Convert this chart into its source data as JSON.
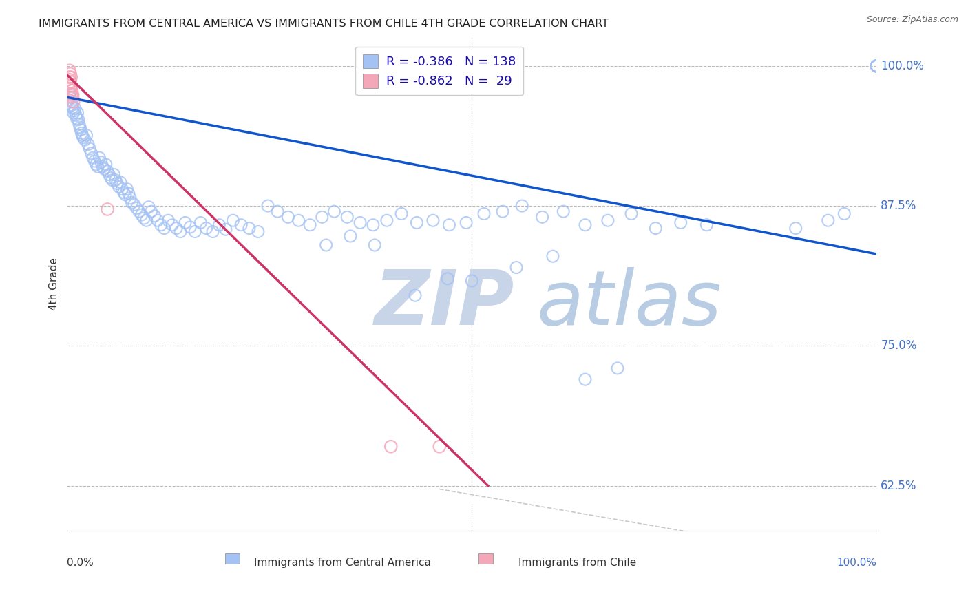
{
  "title": "IMMIGRANTS FROM CENTRAL AMERICA VS IMMIGRANTS FROM CHILE 4TH GRADE CORRELATION CHART",
  "source": "Source: ZipAtlas.com",
  "xlabel_bottom_left": "0.0%",
  "xlabel_bottom_right": "100.0%",
  "ylabel": "4th Grade",
  "ytick_labels": [
    "62.5%",
    "75.0%",
    "87.5%",
    "100.0%"
  ],
  "ytick_values": [
    0.625,
    0.75,
    0.875,
    1.0
  ],
  "legend_label1": "Immigrants from Central America",
  "legend_label2": "Immigrants from Chile",
  "color_blue": "#a4c2f4",
  "color_pink": "#f4a7b9",
  "color_blue_line": "#1155cc",
  "color_pink_line": "#cc3366",
  "watermark_zip_color": "#c8d4e8",
  "watermark_atlas_color": "#b8cce4",
  "xlim": [
    0.0,
    1.0
  ],
  "ylim": [
    0.585,
    1.025
  ],
  "blue_line_x": [
    0.0,
    1.0
  ],
  "blue_line_y": [
    0.972,
    0.832
  ],
  "pink_line_x": [
    0.0,
    0.52
  ],
  "pink_line_y": [
    0.992,
    0.625
  ],
  "ref_line_x": [
    0.46,
    1.0
  ],
  "ref_line_y": [
    0.622,
    0.555
  ],
  "blue_scatter_x": [
    0.002,
    0.003,
    0.004,
    0.005,
    0.006,
    0.007,
    0.008,
    0.009,
    0.01,
    0.011,
    0.012,
    0.013,
    0.014,
    0.015,
    0.016,
    0.017,
    0.018,
    0.019,
    0.02,
    0.022,
    0.024,
    0.026,
    0.028,
    0.03,
    0.032,
    0.034,
    0.036,
    0.038,
    0.04,
    0.042,
    0.044,
    0.046,
    0.048,
    0.05,
    0.052,
    0.054,
    0.056,
    0.058,
    0.06,
    0.062,
    0.064,
    0.066,
    0.068,
    0.07,
    0.072,
    0.074,
    0.076,
    0.078,
    0.08,
    0.083,
    0.086,
    0.089,
    0.092,
    0.095,
    0.098,
    0.101,
    0.104,
    0.108,
    0.112,
    0.116,
    0.12,
    0.125,
    0.13,
    0.135,
    0.14,
    0.146,
    0.152,
    0.158,
    0.165,
    0.172,
    0.18,
    0.188,
    0.196,
    0.205,
    0.215,
    0.225,
    0.236,
    0.248,
    0.26,
    0.273,
    0.286,
    0.3,
    0.315,
    0.33,
    0.346,
    0.362,
    0.378,
    0.395,
    0.413,
    0.432,
    0.452,
    0.472,
    0.493,
    0.515,
    0.538,
    0.562,
    0.587,
    0.613,
    0.64,
    0.668,
    0.697,
    0.727,
    0.758,
    0.79,
    1.0,
    1.0,
    1.0,
    1.0,
    1.0,
    1.0,
    1.0,
    1.0,
    1.0,
    1.0,
    1.0,
    1.0,
    1.0,
    1.0,
    1.0,
    1.0,
    1.0,
    1.0,
    1.0,
    1.0,
    0.9,
    0.94,
    0.96,
    0.5,
    0.555,
    0.6,
    0.43,
    0.47,
    0.32,
    0.35,
    0.38,
    0.64,
    0.68
  ],
  "blue_scatter_y": [
    0.97,
    0.975,
    0.972,
    0.968,
    0.965,
    0.963,
    0.958,
    0.96,
    0.962,
    0.956,
    0.953,
    0.958,
    0.952,
    0.948,
    0.945,
    0.943,
    0.94,
    0.938,
    0.936,
    0.934,
    0.938,
    0.93,
    0.926,
    0.922,
    0.918,
    0.915,
    0.912,
    0.91,
    0.918,
    0.914,
    0.91,
    0.908,
    0.912,
    0.906,
    0.903,
    0.9,
    0.898,
    0.903,
    0.898,
    0.895,
    0.892,
    0.896,
    0.89,
    0.887,
    0.885,
    0.89,
    0.886,
    0.882,
    0.878,
    0.876,
    0.873,
    0.87,
    0.867,
    0.864,
    0.862,
    0.874,
    0.87,
    0.866,
    0.862,
    0.858,
    0.855,
    0.862,
    0.858,
    0.855,
    0.852,
    0.86,
    0.856,
    0.852,
    0.86,
    0.855,
    0.852,
    0.858,
    0.854,
    0.862,
    0.858,
    0.855,
    0.852,
    0.875,
    0.87,
    0.865,
    0.862,
    0.858,
    0.865,
    0.87,
    0.865,
    0.86,
    0.858,
    0.862,
    0.868,
    0.86,
    0.862,
    0.858,
    0.86,
    0.868,
    0.87,
    0.875,
    0.865,
    0.87,
    0.858,
    0.862,
    0.868,
    0.855,
    0.86,
    0.858,
    1.0,
    1.0,
    1.0,
    1.0,
    1.0,
    1.0,
    1.0,
    1.0,
    1.0,
    1.0,
    1.0,
    1.0,
    1.0,
    1.0,
    1.0,
    1.0,
    1.0,
    1.0,
    1.0,
    1.0,
    0.855,
    0.862,
    0.868,
    0.808,
    0.82,
    0.83,
    0.795,
    0.81,
    0.84,
    0.848,
    0.84,
    0.72,
    0.73
  ],
  "pink_scatter_x": [
    0.002,
    0.003,
    0.004,
    0.005,
    0.006,
    0.007,
    0.008,
    0.003,
    0.004,
    0.005,
    0.006,
    0.007,
    0.003,
    0.004,
    0.005,
    0.05,
    0.4,
    0.46
  ],
  "pink_scatter_y": [
    0.988,
    0.984,
    0.98,
    0.978,
    0.975,
    0.972,
    0.968,
    0.99,
    0.986,
    0.982,
    0.978,
    0.974,
    0.996,
    0.993,
    0.99,
    0.872,
    0.66,
    0.66
  ]
}
